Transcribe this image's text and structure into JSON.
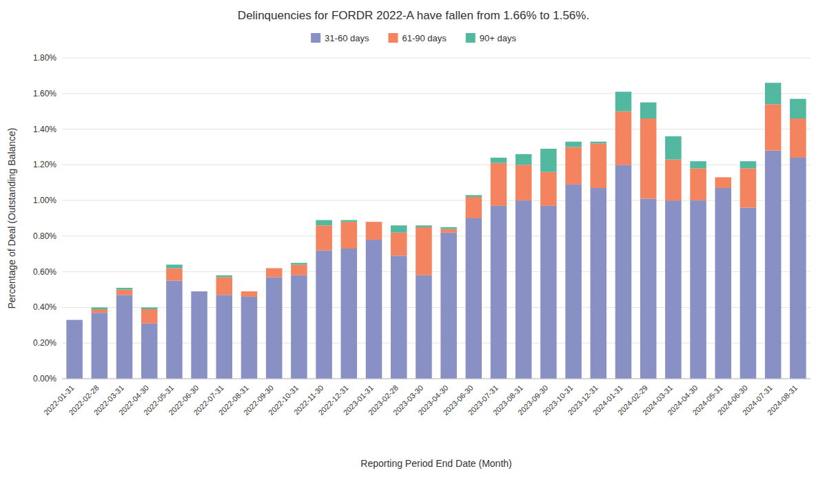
{
  "chart_data": {
    "type": "bar",
    "stacked": true,
    "title": "Delinquencies for FORDR 2022-A have fallen from 1.66% to 1.56%.",
    "xlabel": "Reporting Period End Date (Month)",
    "ylabel": "Percentage of Deal (Outstanding Balance)",
    "categories": [
      "2022-01-31",
      "2022-02-28",
      "2022-03-31",
      "2022-04-30",
      "2022-05-31",
      "2022-06-30",
      "2022-07-31",
      "2022-08-31",
      "2022-09-30",
      "2022-10-31",
      "2022-11-30",
      "2022-12-31",
      "2023-01-31",
      "2023-02-28",
      "2023-03-30",
      "2023-04-30",
      "2023-06-30",
      "2023-07-31",
      "2023-08-31",
      "2023-09-30",
      "2023-10-31",
      "2023-12-31",
      "2024-01-31",
      "2024-02-29",
      "2024-03-31",
      "2024-04-30",
      "2024-05-31",
      "2024-06-30",
      "2024-07-31",
      "2024-08-31"
    ],
    "series": [
      {
        "name": "31-60 days",
        "color": "#8890c4",
        "values": [
          0.0033,
          0.0037,
          0.0047,
          0.0031,
          0.0055,
          0.0049,
          0.0047,
          0.0046,
          0.0057,
          0.0058,
          0.0072,
          0.0073,
          0.0078,
          0.0069,
          0.0058,
          0.0082,
          0.009,
          0.0097,
          0.01,
          0.0097,
          0.0109,
          0.0107,
          0.012,
          0.0101,
          0.01,
          0.01,
          0.0107,
          0.0096,
          0.0128,
          0.0124
        ]
      },
      {
        "name": "61-90 days",
        "color": "#f4845f",
        "values": [
          0.0,
          0.0002,
          0.0003,
          0.0008,
          0.0007,
          0.0,
          0.001,
          0.0003,
          0.0005,
          0.0006,
          0.0014,
          0.0015,
          0.001,
          0.0013,
          0.0027,
          0.0002,
          0.0012,
          0.0024,
          0.002,
          0.0019,
          0.0021,
          0.0025,
          0.003,
          0.0045,
          0.0023,
          0.0018,
          0.0006,
          0.0022,
          0.0026,
          0.0022
        ]
      },
      {
        "name": "90+ days",
        "color": "#52b8a0",
        "values": [
          0.0,
          0.0001,
          0.0001,
          0.0001,
          0.0002,
          0.0,
          0.0001,
          0.0,
          0.0,
          0.0001,
          0.0003,
          0.0001,
          0.0,
          0.0004,
          0.0001,
          0.0001,
          0.0001,
          0.0003,
          0.0006,
          0.0013,
          0.0003,
          0.0001,
          0.0011,
          0.0009,
          0.0013,
          0.0004,
          0.0,
          0.0004,
          0.0012,
          0.0011
        ]
      }
    ],
    "ylim": [
      0,
      0.018
    ],
    "yticks": [
      {
        "value": 0.0,
        "label": "0.00%"
      },
      {
        "value": 0.002,
        "label": "0.20%"
      },
      {
        "value": 0.004,
        "label": "0.40%"
      },
      {
        "value": 0.006,
        "label": "0.60%"
      },
      {
        "value": 0.008,
        "label": "0.80%"
      },
      {
        "value": 0.01,
        "label": "1.00%"
      },
      {
        "value": 0.012,
        "label": "1.20%"
      },
      {
        "value": 0.014,
        "label": "1.40%"
      },
      {
        "value": 0.016,
        "label": "1.60%"
      },
      {
        "value": 0.018,
        "label": "1.80%"
      }
    ],
    "grid": true,
    "legend": "top"
  }
}
